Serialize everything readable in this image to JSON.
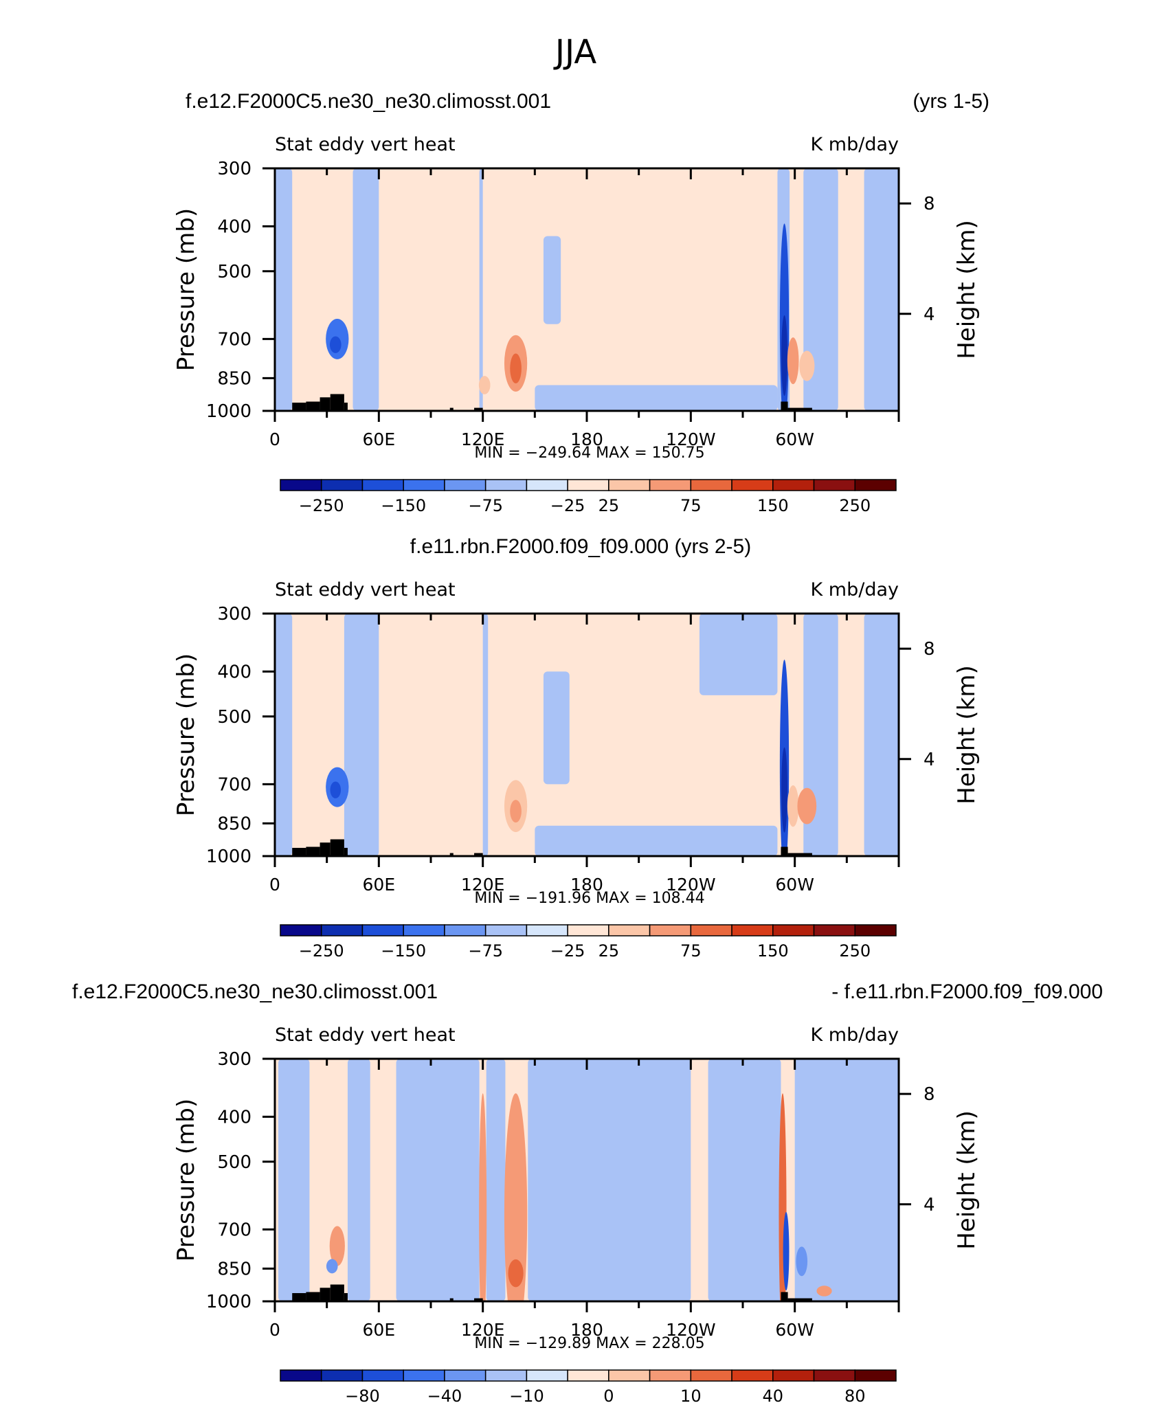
{
  "figure_title": "JJA",
  "colors": {
    "land": "#000000",
    "frame": "#000000",
    "colormap": [
      "#08088a",
      "#0d2eb0",
      "#1d4fd8",
      "#3b72ee",
      "#6b96f2",
      "#a9c2f6",
      "#d6e6fb",
      "#ffe6d6",
      "#fbc6a8",
      "#f59a76",
      "#e8683d",
      "#d73c18",
      "#b3200c",
      "#8a1010",
      "#5c0000"
    ]
  },
  "chart_data": [
    {
      "type": "heatmap",
      "title_left": "f.e12.F2000C5.ne30_ne30.climosst.001",
      "title_center": "",
      "title_right": "(yrs 1-5)",
      "variable": "Stat eddy vert heat",
      "units": "K mb/day",
      "ylabel": "Pressure (mb)",
      "ylabel_right": "Height (km)",
      "y_ticks": [
        300,
        400,
        500,
        700,
        850,
        1000
      ],
      "y_right_ticks": [
        8,
        4
      ],
      "x_ticks": [
        "0",
        "60E",
        "120E",
        "180",
        "120W",
        "60W"
      ],
      "stats": "MIN = −249.64   MAX = 150.75",
      "colorbar_labels": [
        "−250",
        "−150",
        "−75",
        "−25",
        "25",
        "75",
        "150",
        "250"
      ],
      "features": [
        {
          "type": "blue_band",
          "lon": [
            0,
            10
          ],
          "p": [
            300,
            1000
          ],
          "level": -1
        },
        {
          "type": "blue_band",
          "lon": [
            45,
            60
          ],
          "p": [
            300,
            1000
          ],
          "level": -1
        },
        {
          "type": "blue_band",
          "lon": [
            118,
            120
          ],
          "p": [
            300,
            1000
          ],
          "level": -1
        },
        {
          "type": "blue_band",
          "lon": [
            150,
            290
          ],
          "p": [
            880,
            1000
          ],
          "level": -1
        },
        {
          "type": "blue_band",
          "lon": [
            155,
            165
          ],
          "p": [
            420,
            650
          ],
          "level": -1
        },
        {
          "type": "blue_band",
          "lon": [
            290,
            297
          ],
          "p": [
            300,
            1000
          ],
          "level": -1
        },
        {
          "type": "blue_band",
          "lon": [
            305,
            325
          ],
          "p": [
            300,
            1000
          ],
          "level": -1
        },
        {
          "type": "blue_band",
          "lon": [
            340,
            360
          ],
          "p": [
            300,
            1000
          ],
          "level": -1
        },
        {
          "type": "blob",
          "lon": 36,
          "p": 700,
          "dlon": 3,
          "dp": 140,
          "level": -3
        },
        {
          "type": "blob",
          "lon": 35,
          "p": 720,
          "dlon": 1.5,
          "dp": 60,
          "level": -4
        },
        {
          "type": "blob",
          "lon": 139,
          "p": 790,
          "dlon": 3,
          "dp": 220,
          "level": 2
        },
        {
          "type": "blob",
          "lon": 139,
          "p": 810,
          "dlon": 1.5,
          "dp": 120,
          "level": 3
        },
        {
          "type": "blob",
          "lon": 121,
          "p": 880,
          "dlon": 1.5,
          "dp": 80,
          "level": 1
        },
        {
          "type": "blob",
          "lon": 294,
          "p": 650,
          "dlon": 1.2,
          "dp": 600,
          "level": -4
        },
        {
          "type": "blob",
          "lon": 294,
          "p": 760,
          "dlon": 0.8,
          "dp": 300,
          "level": -5
        },
        {
          "type": "blob",
          "lon": 299,
          "p": 780,
          "dlon": 1.5,
          "dp": 180,
          "level": 2
        },
        {
          "type": "blob",
          "lon": 307,
          "p": 800,
          "dlon": 2,
          "dp": 120,
          "level": 1
        }
      ]
    },
    {
      "type": "heatmap",
      "title_left": "",
      "title_center": "f.e11.rbn.F2000.f09_f09.000 (yrs 2-5)",
      "title_right": "",
      "variable": "Stat eddy vert heat",
      "units": "K mb/day",
      "ylabel": "Pressure (mb)",
      "ylabel_right": "Height (km)",
      "y_ticks": [
        300,
        400,
        500,
        700,
        850,
        1000
      ],
      "y_right_ticks": [
        8,
        4
      ],
      "x_ticks": [
        "0",
        "60E",
        "120E",
        "180",
        "120W",
        "60W"
      ],
      "stats": "MIN = −191.96   MAX = 108.44",
      "colorbar_labels": [
        "−250",
        "−150",
        "−75",
        "−25",
        "25",
        "75",
        "150",
        "250"
      ],
      "features": [
        {
          "type": "blue_band",
          "lon": [
            0,
            10
          ],
          "p": [
            300,
            1000
          ],
          "level": -1
        },
        {
          "type": "blue_band",
          "lon": [
            40,
            60
          ],
          "p": [
            300,
            1000
          ],
          "level": -1
        },
        {
          "type": "blue_band",
          "lon": [
            120,
            123
          ],
          "p": [
            300,
            1000
          ],
          "level": -1
        },
        {
          "type": "blue_band",
          "lon": [
            150,
            290
          ],
          "p": [
            860,
            1000
          ],
          "level": -1
        },
        {
          "type": "blue_band",
          "lon": [
            155,
            170
          ],
          "p": [
            400,
            700
          ],
          "level": -1
        },
        {
          "type": "blue_band",
          "lon": [
            245,
            290
          ],
          "p": [
            300,
            450
          ],
          "level": -1
        },
        {
          "type": "blue_band",
          "lon": [
            305,
            325
          ],
          "p": [
            300,
            1000
          ],
          "level": -1
        },
        {
          "type": "blue_band",
          "lon": [
            340,
            360
          ],
          "p": [
            300,
            1000
          ],
          "level": -1
        },
        {
          "type": "blob",
          "lon": 36,
          "p": 710,
          "dlon": 3,
          "dp": 140,
          "level": -3
        },
        {
          "type": "blob",
          "lon": 35,
          "p": 720,
          "dlon": 1.4,
          "dp": 60,
          "level": -4
        },
        {
          "type": "blob",
          "lon": 139,
          "p": 780,
          "dlon": 3,
          "dp": 200,
          "level": 1
        },
        {
          "type": "blob",
          "lon": 139,
          "p": 800,
          "dlon": 1.5,
          "dp": 90,
          "level": 2
        },
        {
          "type": "blob",
          "lon": 294,
          "p": 640,
          "dlon": 1.2,
          "dp": 620,
          "level": -4
        },
        {
          "type": "blob",
          "lon": 294,
          "p": 720,
          "dlon": 0.8,
          "dp": 300,
          "level": -5
        },
        {
          "type": "blob",
          "lon": 299,
          "p": 780,
          "dlon": 1.5,
          "dp": 160,
          "level": 1
        },
        {
          "type": "blob",
          "lon": 307,
          "p": 780,
          "dlon": 2.5,
          "dp": 140,
          "level": 2
        }
      ]
    },
    {
      "type": "heatmap",
      "title_left": "f.e12.F2000C5.ne30_ne30.climosst.001",
      "title_center": "",
      "title_right": "- f.e11.rbn.F2000.f09_f09.000",
      "variable": "Stat eddy vert heat",
      "units": "K mb/day",
      "ylabel": "Pressure (mb)",
      "ylabel_right": "Height (km)",
      "y_ticks": [
        300,
        400,
        500,
        700,
        850,
        1000
      ],
      "y_right_ticks": [
        8,
        4
      ],
      "x_ticks": [
        "0",
        "60E",
        "120E",
        "180",
        "120W",
        "60W"
      ],
      "stats": "MIN = −129.89   MAX = 228.05",
      "colorbar_labels": [
        "−80",
        "−40",
        "−10",
        "0",
        "10",
        "40",
        "80"
      ],
      "features": [
        {
          "type": "blue_band",
          "lon": [
            2,
            20
          ],
          "p": [
            300,
            1000
          ],
          "level": -1
        },
        {
          "type": "blue_band",
          "lon": [
            42,
            55
          ],
          "p": [
            300,
            1000
          ],
          "level": -1
        },
        {
          "type": "blue_band",
          "lon": [
            70,
            118
          ],
          "p": [
            300,
            1000
          ],
          "level": -1
        },
        {
          "type": "blue_band",
          "lon": [
            122,
            133
          ],
          "p": [
            300,
            1000
          ],
          "level": -1
        },
        {
          "type": "blue_band",
          "lon": [
            146,
            240
          ],
          "p": [
            300,
            1000
          ],
          "level": -1
        },
        {
          "type": "blue_band",
          "lon": [
            250,
            292
          ],
          "p": [
            300,
            1000
          ],
          "level": -1
        },
        {
          "type": "blue_band",
          "lon": [
            300,
            360
          ],
          "p": [
            300,
            1000
          ],
          "level": -1
        },
        {
          "type": "blob",
          "lon": 120,
          "p": 650,
          "dlon": 1,
          "dp": 700,
          "level": 2
        },
        {
          "type": "blob",
          "lon": 139,
          "p": 650,
          "dlon": 3,
          "dp": 700,
          "level": 2
        },
        {
          "type": "blob",
          "lon": 139,
          "p": 870,
          "dlon": 2,
          "dp": 120,
          "level": 3
        },
        {
          "type": "blob",
          "lon": 36,
          "p": 760,
          "dlon": 2,
          "dp": 150,
          "level": 2
        },
        {
          "type": "blob",
          "lon": 33,
          "p": 840,
          "dlon": 1.5,
          "dp": 60,
          "level": -2
        },
        {
          "type": "blob",
          "lon": 293,
          "p": 650,
          "dlon": 1,
          "dp": 700,
          "level": 3
        },
        {
          "type": "blob",
          "lon": 295,
          "p": 780,
          "dlon": 0.8,
          "dp": 300,
          "level": -4
        },
        {
          "type": "blob",
          "lon": 304,
          "p": 820,
          "dlon": 1.5,
          "dp": 120,
          "level": -2
        },
        {
          "type": "blob",
          "lon": 317,
          "p": 950,
          "dlon": 2,
          "dp": 50,
          "level": 2
        }
      ]
    }
  ]
}
